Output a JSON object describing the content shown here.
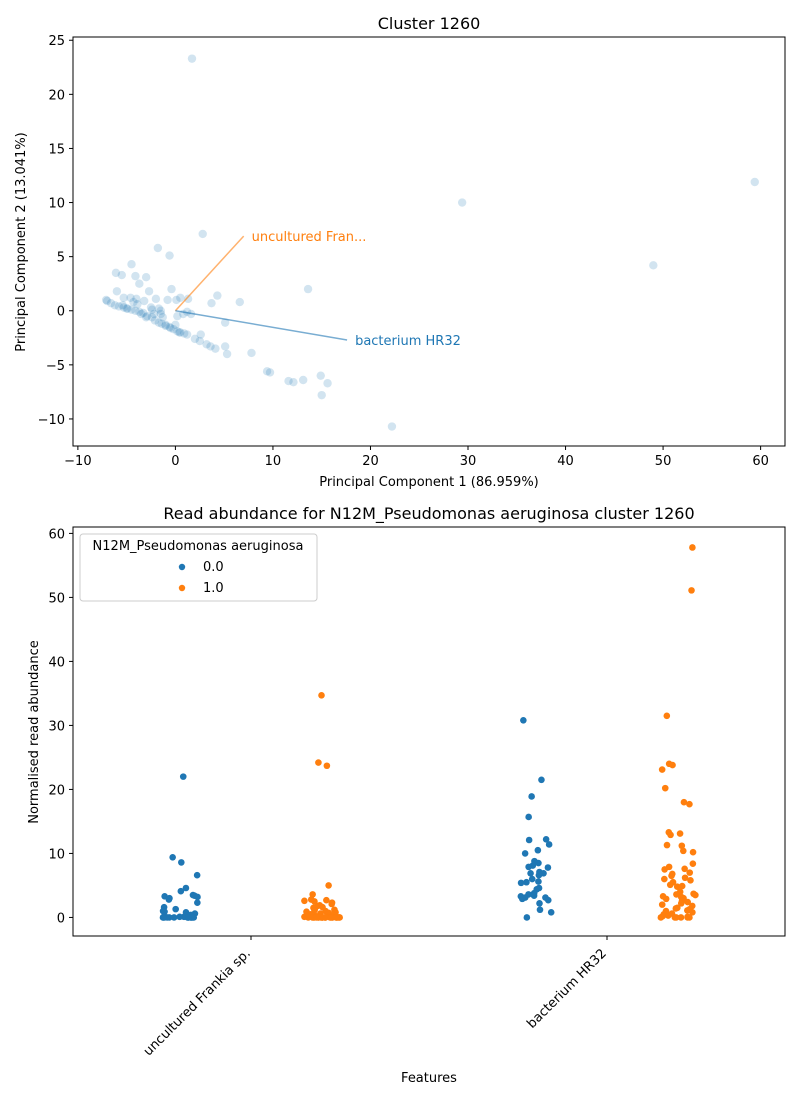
{
  "colors": {
    "blue": "#1f77b4",
    "orange": "#ff7f0e"
  },
  "chart_data": [
    {
      "type": "scatter",
      "title": "Cluster 1260",
      "xlabel": "Principal Component 1 (86.959%)",
      "ylabel": "Principal Component 2 (13.041%)",
      "xlim": [
        -10.5,
        62.5
      ],
      "ylim": [
        -12.5,
        25.3
      ],
      "xticks": [
        -10,
        0,
        10,
        20,
        30,
        40,
        50,
        60
      ],
      "xtick_labels": [
        "−10",
        "0",
        "10",
        "20",
        "30",
        "40",
        "50",
        "60"
      ],
      "yticks": [
        -10,
        -5,
        0,
        5,
        10,
        15,
        20,
        25
      ],
      "ytick_labels": [
        "−10",
        "−5",
        "0",
        "5",
        "10",
        "15",
        "20",
        "25"
      ],
      "grid": false,
      "points": [
        [
          1.7,
          23.3
        ],
        [
          59.4,
          11.9
        ],
        [
          29.4,
          10.0
        ],
        [
          49.0,
          4.2
        ],
        [
          2.8,
          7.1
        ],
        [
          -1.8,
          5.8
        ],
        [
          -0.6,
          5.1
        ],
        [
          -4.5,
          4.3
        ],
        [
          -6.1,
          3.5
        ],
        [
          -5.5,
          3.3
        ],
        [
          -4.1,
          3.2
        ],
        [
          -3.0,
          3.1
        ],
        [
          -3.7,
          2.5
        ],
        [
          13.6,
          2.0
        ],
        [
          -0.4,
          2.0
        ],
        [
          -6.0,
          1.8
        ],
        [
          -2.7,
          1.8
        ],
        [
          4.3,
          1.4
        ],
        [
          -5.3,
          1.2
        ],
        [
          -4.6,
          1.2
        ],
        [
          -4.0,
          1.1
        ],
        [
          -3.2,
          0.9
        ],
        [
          -2.0,
          1.1
        ],
        [
          -0.8,
          1.0
        ],
        [
          0.1,
          1.0
        ],
        [
          0.5,
          1.2
        ],
        [
          1.3,
          1.1
        ],
        [
          3.7,
          0.7
        ],
        [
          6.6,
          0.8
        ],
        [
          -7.1,
          1.0
        ],
        [
          -7.0,
          0.9
        ],
        [
          -6.6,
          0.7
        ],
        [
          -6.2,
          0.5
        ],
        [
          -5.8,
          0.4
        ],
        [
          -5.3,
          0.3
        ],
        [
          -4.9,
          0.2
        ],
        [
          -4.5,
          0.1
        ],
        [
          -4.1,
          0.0
        ],
        [
          -3.7,
          -0.1
        ],
        [
          -3.3,
          -0.2
        ],
        [
          -2.5,
          0.3
        ],
        [
          -1.7,
          0.2
        ],
        [
          -4.3,
          0.8
        ],
        [
          -3.9,
          0.6
        ],
        [
          -2.9,
          -0.5
        ],
        [
          -2.4,
          -0.6
        ],
        [
          -2.1,
          -0.9
        ],
        [
          -1.7,
          -1.1
        ],
        [
          -1.4,
          -1.2
        ],
        [
          -1.0,
          -1.4
        ],
        [
          -0.6,
          -1.5
        ],
        [
          -0.2,
          -1.7
        ],
        [
          0.2,
          -1.9
        ],
        [
          0.5,
          -2.0
        ],
        [
          0.9,
          -2.1
        ],
        [
          1.2,
          -2.2
        ],
        [
          2.0,
          -2.6
        ],
        [
          2.5,
          -2.8
        ],
        [
          3.2,
          -3.1
        ],
        [
          3.6,
          -3.3
        ],
        [
          4.1,
          -3.5
        ],
        [
          5.1,
          -3.3
        ],
        [
          2.6,
          -2.2
        ],
        [
          5.3,
          -4.0
        ],
        [
          7.8,
          -3.9
        ],
        [
          5.1,
          -1.1
        ],
        [
          9.4,
          -5.6
        ],
        [
          9.7,
          -5.7
        ],
        [
          11.6,
          -6.5
        ],
        [
          12.1,
          -6.6
        ],
        [
          13.1,
          -6.4
        ],
        [
          14.9,
          -6.0
        ],
        [
          15.6,
          -6.7
        ],
        [
          15.0,
          -7.8
        ],
        [
          22.2,
          -10.7
        ],
        [
          0.2,
          -0.5
        ],
        [
          0.8,
          -0.3
        ],
        [
          1.2,
          -0.1
        ],
        [
          1.6,
          -0.3
        ],
        [
          -1.3,
          -0.6
        ],
        [
          -2.2,
          -0.3
        ],
        [
          -1.5,
          0.0
        ],
        [
          -2.4,
          0.1
        ],
        [
          -3.0,
          -0.6
        ],
        [
          -3.5,
          -0.3
        ],
        [
          -5.0,
          0.2
        ],
        [
          -5.4,
          0.5
        ],
        [
          -1.5,
          -0.3
        ],
        [
          0.0,
          -1.3
        ],
        [
          0.4,
          -2.0
        ],
        [
          -0.5,
          -1.6
        ],
        [
          -1.0,
          -1.3
        ]
      ],
      "annotations": [
        {
          "label": "uncultured Fran...",
          "arrow_to": [
            7.0,
            6.9
          ],
          "color": "orange"
        },
        {
          "label": "bacterium HR32",
          "arrow_to": [
            17.6,
            -2.7
          ],
          "color": "blue"
        }
      ]
    },
    {
      "type": "scatter",
      "subtype": "strip",
      "title": "Read abundance for N12M_Pseudomonas aeruginosa cluster 1260",
      "xlabel": "Features",
      "ylabel": "Normalised read abundance",
      "categories": [
        "uncultured Frankia sp.",
        "bacterium HR32"
      ],
      "ylim": [
        -2.9,
        61.0
      ],
      "yticks": [
        0,
        10,
        20,
        30,
        40,
        50,
        60
      ],
      "legend": {
        "title": "N12M_Pseudomonas aeruginosa",
        "position": "top-left"
      },
      "series": [
        {
          "name": "0.0",
          "color": "blue",
          "groups": [
            [
              22.0,
              9.4,
              8.6,
              6.6,
              4.6,
              4.1,
              3.5,
              3.4,
              3.3,
              3.2,
              3.0,
              2.8,
              2.3,
              1.6,
              1.3,
              1.0,
              0.9,
              0.8,
              0.6,
              0.4,
              0.3,
              0.2,
              0.1,
              0.1,
              0.0,
              0.0,
              0.0,
              0.0,
              0.0,
              0.0,
              0.0,
              0.0,
              0.0,
              0.0,
              0.0,
              0.0,
              0.0,
              0.0
            ],
            [
              30.8,
              21.5,
              18.9,
              15.7,
              12.2,
              12.1,
              11.4,
              10.5,
              10.0,
              8.8,
              8.5,
              8.1,
              7.9,
              7.8,
              7.1,
              6.9,
              6.9,
              6.6,
              6.0,
              5.6,
              5.5,
              5.4,
              4.6,
              4.4,
              3.8,
              3.6,
              3.4,
              3.3,
              3.1,
              3.1,
              2.9,
              2.7,
              2.2,
              1.2,
              0.8,
              0.0
            ]
          ]
        },
        {
          "name": "1.0",
          "color": "orange",
          "groups": [
            [
              34.7,
              24.2,
              23.7,
              5.0,
              3.6,
              2.8,
              2.7,
              2.6,
              2.5,
              2.3,
              2.1,
              1.9,
              1.8,
              1.6,
              1.5,
              1.3,
              1.2,
              1.1,
              1.0,
              0.9,
              0.8,
              0.7,
              0.6,
              0.5,
              0.4,
              0.3,
              0.3,
              0.2,
              0.2,
              0.1,
              0.1,
              0.1,
              0.0,
              0.0,
              0.0,
              0.0,
              0.0,
              0.0,
              0.0,
              0.0,
              0.0,
              0.0,
              0.0,
              0.0,
              0.0,
              0.0,
              0.0,
              0.0,
              0.0,
              0.0,
              0.0,
              0.0,
              0.0,
              0.0,
              0.0,
              0.0
            ],
            [
              57.8,
              51.1,
              31.5,
              24.0,
              23.8,
              23.1,
              20.2,
              18.0,
              17.7,
              13.3,
              13.1,
              12.9,
              11.3,
              11.2,
              10.4,
              10.2,
              8.4,
              7.9,
              7.6,
              7.5,
              7.0,
              6.8,
              6.5,
              6.2,
              6.0,
              5.8,
              5.5,
              5.1,
              4.9,
              4.8,
              4.0,
              3.7,
              3.6,
              3.5,
              3.3,
              3.2,
              3.0,
              2.9,
              2.6,
              2.4,
              2.2,
              2.0,
              1.8,
              1.5,
              1.4,
              1.3,
              1.1,
              1.0,
              0.8,
              0.6,
              0.5,
              0.3,
              0.2,
              0.1,
              0.0,
              0.0,
              0.0,
              0.0,
              0.0,
              0.0
            ]
          ]
        }
      ]
    }
  ]
}
